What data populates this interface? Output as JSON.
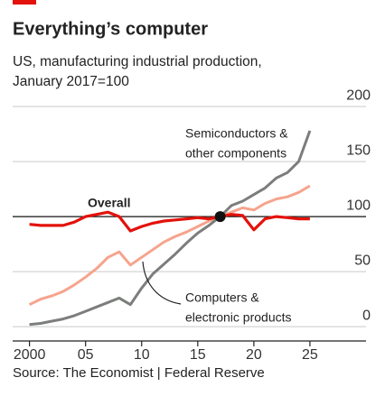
{
  "chart_data": {
    "type": "line",
    "title": "Everything’s computer",
    "subtitle": [
      "US, manufacturing industrial production,",
      "January 2017=100"
    ],
    "source": "Source: The Economist | Federal Reserve",
    "x": [
      2000,
      2001,
      2002,
      2003,
      2004,
      2005,
      2006,
      2007,
      2008,
      2009,
      2010,
      2011,
      2012,
      2013,
      2014,
      2015,
      2016,
      2017,
      2018,
      2019,
      2020,
      2021,
      2022,
      2023,
      2024,
      2025
    ],
    "series": [
      {
        "name": "Overall",
        "color": "#e3120b",
        "values": [
          93,
          92,
          92,
          92,
          95,
          100,
          102,
          104,
          100,
          87,
          91,
          94,
          96,
          97,
          98,
          99,
          98,
          100,
          102,
          101,
          88,
          98,
          100,
          99,
          98,
          98
        ]
      },
      {
        "name": [
          "Computers &",
          "electronic products"
        ],
        "color": "#f5a48c",
        "values": [
          20,
          25,
          28,
          32,
          38,
          45,
          53,
          63,
          68,
          56,
          63,
          70,
          77,
          82,
          86,
          91,
          96,
          100,
          104,
          108,
          106,
          112,
          116,
          118,
          122,
          128
        ]
      },
      {
        "name": [
          "Semiconductors &",
          "other components"
        ],
        "color": "#7b7e7b",
        "values": [
          2,
          3,
          5,
          7,
          10,
          14,
          18,
          22,
          26,
          20,
          35,
          48,
          57,
          66,
          76,
          85,
          92,
          100,
          110,
          114,
          120,
          126,
          135,
          140,
          150,
          178
        ]
      }
    ],
    "base_point": {
      "x": 2017,
      "y": 100
    },
    "reference_line": 100,
    "xlim": [
      1998.5,
      2030
    ],
    "ylim": [
      -13,
      205
    ],
    "xticks": [
      2000,
      {
        "value": 2005,
        "label": "05"
      },
      {
        "value": 2010,
        "label": "10"
      },
      {
        "value": 2015,
        "label": "15"
      },
      {
        "value": 2020,
        "label": "20"
      },
      {
        "value": 2025,
        "label": "25"
      }
    ],
    "yticks": [
      0,
      50,
      100,
      150,
      200
    ],
    "grid": true
  }
}
